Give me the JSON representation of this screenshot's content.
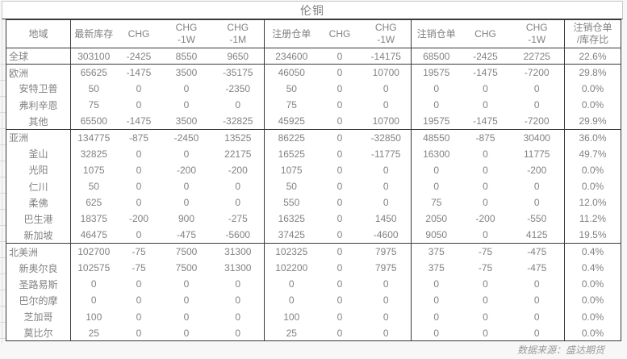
{
  "title": "伦铜",
  "footer": "数据来源：盛达期货",
  "colors": {
    "text_gray": "#828282",
    "negative_red": "#fa3b3b",
    "border_dark": "#3a3a3a",
    "border_light": "#c9c9c9"
  },
  "table": {
    "columns": [
      {
        "label": "地域"
      },
      {
        "label": "最新库存",
        "group_start": true
      },
      {
        "label": "CHG"
      },
      {
        "label": "CHG",
        "label2": "-1W"
      },
      {
        "label": "CHG",
        "label2": "-1M"
      },
      {
        "label": "注册仓单",
        "group_start": true
      },
      {
        "label": "CHG"
      },
      {
        "label": "CHG",
        "label2": "-1W"
      },
      {
        "label": "注销仓单",
        "group_start": true
      },
      {
        "label": "CHG"
      },
      {
        "label": "CHG",
        "label2": "-1W"
      },
      {
        "label": "注销仓单",
        "label2": "/库存比",
        "group_start": true
      }
    ],
    "rows": [
      {
        "region": "全球",
        "indent": false,
        "group_start": false,
        "values": [
          "303100",
          "-2425",
          "8550",
          "9650",
          "234600",
          "0",
          "-14175",
          "68500",
          "-2425",
          "22725",
          "22.6%"
        ]
      },
      {
        "region": "欧洲",
        "indent": false,
        "group_start": true,
        "values": [
          "65625",
          "-1475",
          "3500",
          "-35175",
          "46050",
          "0",
          "10700",
          "19575",
          "-1475",
          "-7200",
          "29.8%"
        ]
      },
      {
        "region": "安特卫普",
        "indent": true,
        "group_start": false,
        "values": [
          "50",
          "0",
          "0",
          "-2350",
          "50",
          "0",
          "0",
          "0",
          "0",
          "0",
          "0.0%"
        ]
      },
      {
        "region": "弗利辛恩",
        "indent": true,
        "group_start": false,
        "values": [
          "75",
          "0",
          "0",
          "0",
          "75",
          "0",
          "0",
          "0",
          "0",
          "0",
          "0.0%"
        ]
      },
      {
        "region": "其他",
        "indent": true,
        "group_start": false,
        "values": [
          "65500",
          "-1475",
          "3500",
          "-32825",
          "45925",
          "0",
          "10700",
          "19575",
          "-1475",
          "-7200",
          "29.9%"
        ]
      },
      {
        "region": "亚洲",
        "indent": false,
        "group_start": true,
        "values": [
          "134775",
          "-875",
          "-2450",
          "13525",
          "86225",
          "0",
          "-32850",
          "48550",
          "-875",
          "30400",
          "36.0%"
        ]
      },
      {
        "region": "釜山",
        "indent": true,
        "group_start": false,
        "values": [
          "32825",
          "0",
          "0",
          "22175",
          "16525",
          "0",
          "-11775",
          "16300",
          "0",
          "11775",
          "49.7%"
        ]
      },
      {
        "region": "光阳",
        "indent": true,
        "group_start": false,
        "values": [
          "1075",
          "0",
          "-200",
          "-200",
          "1075",
          "0",
          "0",
          "0",
          "0",
          "-200",
          "0.0%"
        ]
      },
      {
        "region": "仁川",
        "indent": true,
        "group_start": false,
        "values": [
          "50",
          "0",
          "0",
          "0",
          "50",
          "0",
          "0",
          "0",
          "0",
          "0",
          "0.0%"
        ]
      },
      {
        "region": "柔佛",
        "indent": true,
        "group_start": false,
        "values": [
          "625",
          "0",
          "0",
          "0",
          "550",
          "0",
          "0",
          "75",
          "0",
          "0",
          "12.0%"
        ]
      },
      {
        "region": "巴生港",
        "indent": true,
        "group_start": false,
        "values": [
          "18375",
          "-200",
          "900",
          "-275",
          "16325",
          "0",
          "1450",
          "2050",
          "-200",
          "-550",
          "11.2%"
        ]
      },
      {
        "region": "新加坡",
        "indent": true,
        "group_start": false,
        "values": [
          "46475",
          "0",
          "-475",
          "-5600",
          "37425",
          "0",
          "-4600",
          "9050",
          "0",
          "4125",
          "19.5%"
        ]
      },
      {
        "region": "北美洲",
        "indent": false,
        "group_start": true,
        "values": [
          "102700",
          "-75",
          "7500",
          "31300",
          "102325",
          "0",
          "7975",
          "375",
          "-75",
          "-475",
          "0.4%"
        ]
      },
      {
        "region": "新奥尔良",
        "indent": true,
        "group_start": false,
        "values": [
          "102575",
          "-75",
          "7500",
          "31300",
          "102200",
          "0",
          "7975",
          "375",
          "-75",
          "-475",
          "0.4%"
        ]
      },
      {
        "region": "圣路易斯",
        "indent": true,
        "group_start": false,
        "values": [
          "0",
          "0",
          "0",
          "0",
          "0",
          "0",
          "0",
          "0",
          "0",
          "0",
          "0.0%"
        ]
      },
      {
        "region": "巴尔的摩",
        "indent": true,
        "group_start": false,
        "values": [
          "0",
          "0",
          "0",
          "0",
          "0",
          "0",
          "0",
          "0",
          "0",
          "0",
          "0.0%"
        ]
      },
      {
        "region": "芝加哥",
        "indent": true,
        "group_start": false,
        "values": [
          "100",
          "0",
          "0",
          "0",
          "100",
          "0",
          "0",
          "0",
          "0",
          "0",
          "0.0%"
        ]
      },
      {
        "region": "莫比尔",
        "indent": true,
        "group_start": false,
        "values": [
          "25",
          "0",
          "0",
          "0",
          "25",
          "0",
          "0",
          "0",
          "0",
          "0",
          "0.0%"
        ]
      }
    ]
  }
}
